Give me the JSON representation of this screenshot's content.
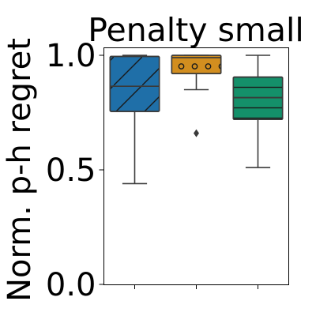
{
  "chart_data": {
    "type": "box",
    "title": "Penalty small",
    "ylabel": "Norm. p-h regret",
    "xlabel": "",
    "ylim": [
      0.0,
      1.0
    ],
    "yticks": [
      0.0,
      0.5,
      1.0
    ],
    "ytick_labels": [
      "0.0",
      "0.5",
      "1.0"
    ],
    "grid": false,
    "legend": "none",
    "boxes": [
      {
        "color": "#1F6FA8",
        "hatch": "diagonal",
        "whisker_low": 0.44,
        "q1": 0.755,
        "median": 0.865,
        "q3": 0.995,
        "whisker_high": 1.0,
        "outliers": []
      },
      {
        "color": "#D28E1F",
        "hatch": "circles",
        "whisker_low": 0.85,
        "q1": 0.92,
        "median": 0.99,
        "q3": 1.0,
        "whisker_high": 1.0,
        "outliers": [
          0.66
        ]
      },
      {
        "color": "#14906A",
        "hatch": "horizontal",
        "whisker_low": 0.51,
        "q1": 0.72,
        "median": 0.815,
        "q3": 0.905,
        "whisker_high": 1.0,
        "outliers": []
      }
    ]
  }
}
